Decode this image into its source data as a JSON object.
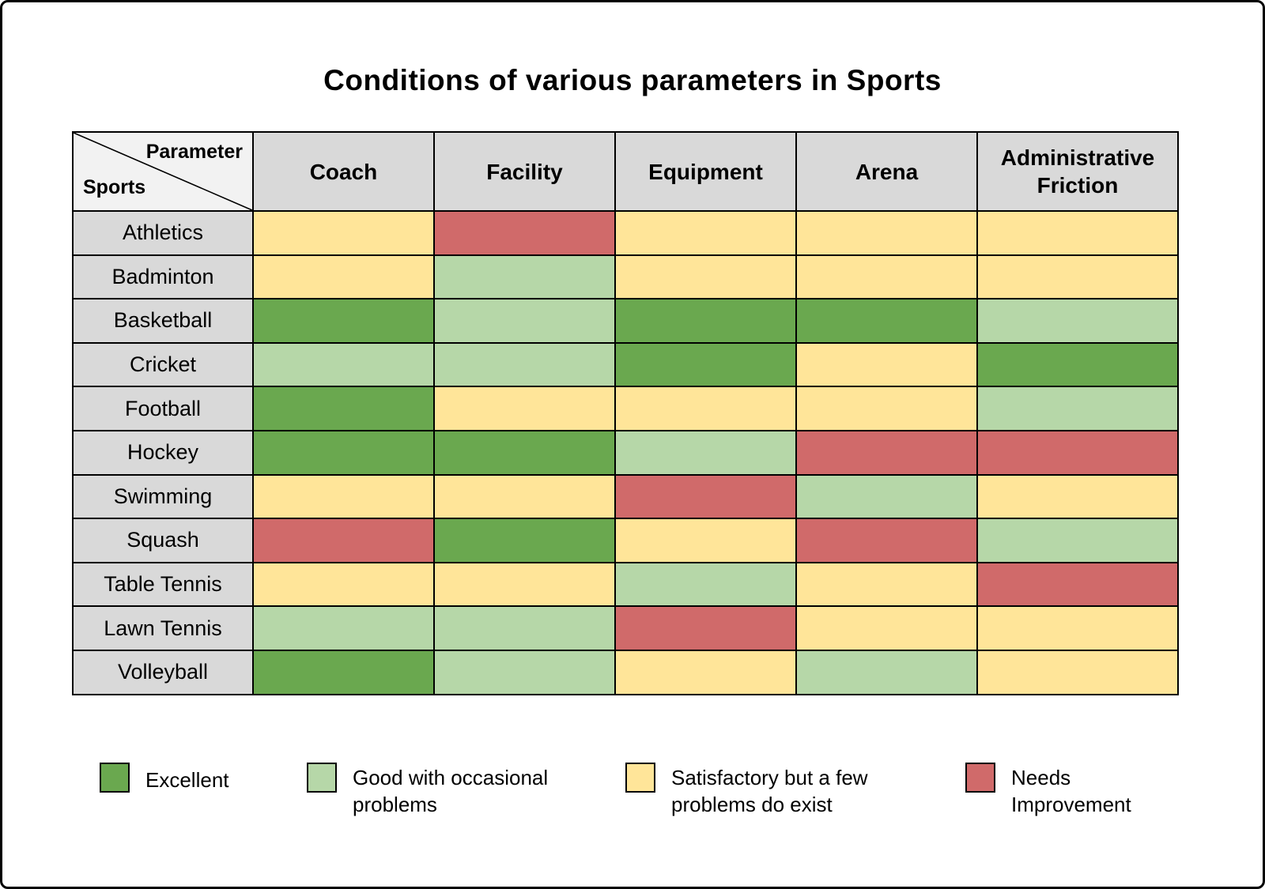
{
  "chart_data": {
    "type": "heatmap",
    "title": "Conditions of various parameters in Sports",
    "corner": {
      "top": "Parameter",
      "bottom": "Sports"
    },
    "columns": [
      "Coach",
      "Facility",
      "Equipment",
      "Arena",
      "Administrative Friction"
    ],
    "rows": [
      "Athletics",
      "Badminton",
      "Basketball",
      "Cricket",
      "Football",
      "Hockey",
      "Swimming",
      "Squash",
      "Table Tennis",
      "Lawn Tennis",
      "Volleyball"
    ],
    "values": [
      [
        "satisfactory",
        "needs_improvement",
        "satisfactory",
        "satisfactory",
        "satisfactory"
      ],
      [
        "satisfactory",
        "good",
        "satisfactory",
        "satisfactory",
        "satisfactory"
      ],
      [
        "excellent",
        "good",
        "excellent",
        "excellent",
        "good"
      ],
      [
        "good",
        "good",
        "excellent",
        "satisfactory",
        "excellent"
      ],
      [
        "excellent",
        "satisfactory",
        "satisfactory",
        "satisfactory",
        "good"
      ],
      [
        "excellent",
        "excellent",
        "good",
        "needs_improvement",
        "needs_improvement"
      ],
      [
        "satisfactory",
        "satisfactory",
        "needs_improvement",
        "good",
        "satisfactory"
      ],
      [
        "needs_improvement",
        "excellent",
        "satisfactory",
        "needs_improvement",
        "good"
      ],
      [
        "satisfactory",
        "satisfactory",
        "good",
        "satisfactory",
        "needs_improvement"
      ],
      [
        "good",
        "good",
        "needs_improvement",
        "satisfactory",
        "satisfactory"
      ],
      [
        "excellent",
        "good",
        "satisfactory",
        "good",
        "satisfactory"
      ]
    ],
    "categories": {
      "excellent": {
        "label": "Excellent",
        "color": "#6AA84F"
      },
      "good": {
        "label": "Good with occasional problems",
        "color": "#B6D7A8"
      },
      "satisfactory": {
        "label": "Satisfactory but a few problems do exist",
        "color": "#FFE599"
      },
      "needs_improvement": {
        "label": "Needs Improvement",
        "color": "#D06A6A"
      }
    },
    "legend": [
      "excellent",
      "good",
      "satisfactory",
      "needs_improvement"
    ],
    "legend_position": "bottom",
    "header_background": "#D9D9D9",
    "corner_background": "#F2F2F2"
  }
}
